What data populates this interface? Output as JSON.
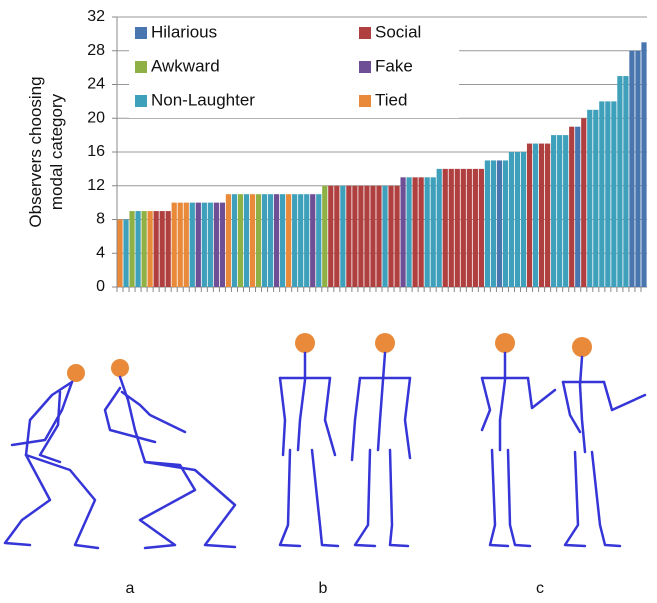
{
  "chart_data": {
    "type": "bar",
    "ylabel": [
      "Observers choosing",
      "modal category"
    ],
    "categories": [
      null,
      null,
      null,
      null,
      null,
      null,
      null,
      null,
      null,
      null,
      null,
      null,
      null,
      null,
      null,
      null,
      null,
      null,
      null,
      null,
      null,
      null,
      null,
      null,
      null,
      null,
      null,
      null,
      null,
      null,
      null,
      null,
      null,
      null,
      null,
      null,
      null,
      null,
      null,
      null,
      null,
      null,
      null,
      null,
      null,
      null,
      null,
      null,
      null,
      null,
      null,
      null,
      null,
      null,
      null,
      null,
      null,
      null,
      null,
      null,
      null,
      null,
      null,
      null,
      null,
      null,
      null,
      null,
      null,
      null,
      null,
      null,
      null,
      null,
      null,
      null,
      null,
      null,
      null,
      null,
      null,
      null,
      null,
      null,
      null,
      null,
      null,
      null
    ],
    "series": [
      {
        "name": "Hilarious",
        "color": "#4a76b0",
        "values": [
          null,
          null,
          null,
          null,
          null,
          null,
          null,
          null,
          null,
          null,
          null,
          null,
          null,
          null,
          null,
          null,
          null,
          null,
          null,
          null,
          null,
          null,
          null,
          null,
          null,
          null,
          null,
          null,
          null,
          null,
          null,
          null,
          null,
          null,
          null,
          null,
          null,
          null,
          null,
          null,
          null,
          null,
          null,
          null,
          null,
          null,
          null,
          null,
          null,
          null,
          null,
          null,
          null,
          null,
          null,
          null,
          null,
          null,
          null,
          null,
          null,
          null,
          null,
          15,
          null,
          null,
          null,
          null,
          null,
          null,
          null,
          null,
          null,
          null,
          null,
          null,
          19,
          null,
          null,
          null,
          null,
          null,
          null,
          null,
          null,
          28,
          28,
          29
        ]
      },
      {
        "name": "Social",
        "color": "#b04040",
        "values": [
          null,
          null,
          null,
          null,
          null,
          null,
          9,
          9,
          9,
          null,
          null,
          null,
          null,
          null,
          null,
          null,
          null,
          null,
          null,
          null,
          null,
          null,
          null,
          null,
          null,
          null,
          null,
          null,
          null,
          null,
          null,
          null,
          null,
          null,
          null,
          12,
          12,
          null,
          12,
          12,
          12,
          12,
          12,
          12,
          null,
          12,
          12,
          null,
          null,
          13,
          13,
          null,
          null,
          null,
          14,
          14,
          14,
          14,
          14,
          14,
          14,
          null,
          null,
          null,
          null,
          null,
          null,
          null,
          17,
          null,
          17,
          17,
          null,
          null,
          null,
          19,
          null,
          20,
          null,
          null,
          null,
          null,
          null,
          null,
          null,
          null,
          null,
          null
        ]
      },
      {
        "name": "Awkward",
        "color": "#8fb045",
        "values": [
          null,
          null,
          9,
          null,
          9,
          null,
          null,
          null,
          null,
          null,
          null,
          null,
          null,
          null,
          null,
          null,
          null,
          null,
          null,
          null,
          11,
          null,
          null,
          11,
          null,
          null,
          null,
          null,
          null,
          null,
          null,
          null,
          null,
          null,
          12,
          null,
          null,
          null,
          null,
          null,
          null,
          null,
          null,
          null,
          null,
          null,
          null,
          null,
          null,
          null,
          null,
          null,
          null,
          null,
          null,
          null,
          null,
          null,
          null,
          null,
          null,
          null,
          null,
          null,
          null,
          null,
          null,
          null,
          null,
          null,
          null,
          null,
          null,
          null,
          null,
          null,
          null,
          null,
          null,
          null,
          null,
          null,
          null,
          null,
          null,
          null,
          null,
          null
        ]
      },
      {
        "name": "Fake",
        "color": "#6e4f96",
        "values": [
          null,
          null,
          null,
          null,
          null,
          null,
          null,
          null,
          null,
          null,
          null,
          null,
          null,
          10,
          null,
          null,
          10,
          10,
          null,
          null,
          null,
          null,
          null,
          null,
          null,
          null,
          11,
          null,
          null,
          null,
          null,
          null,
          11,
          null,
          null,
          null,
          null,
          null,
          null,
          null,
          null,
          null,
          null,
          null,
          null,
          null,
          null,
          13,
          null,
          null,
          null,
          null,
          null,
          null,
          null,
          null,
          null,
          null,
          null,
          null,
          null,
          null,
          null,
          null,
          null,
          null,
          null,
          null,
          null,
          null,
          null,
          null,
          null,
          null,
          null,
          null,
          null,
          null,
          null,
          null,
          null,
          null,
          null,
          null,
          null,
          null,
          null,
          null
        ]
      },
      {
        "name": "Non-Laughter",
        "color": "#3ea0bb",
        "values": [
          null,
          8,
          null,
          9,
          null,
          null,
          null,
          null,
          null,
          null,
          null,
          null,
          10,
          null,
          10,
          10,
          null,
          null,
          null,
          11,
          null,
          11,
          null,
          null,
          11,
          11,
          null,
          11,
          null,
          11,
          11,
          11,
          null,
          11,
          null,
          null,
          null,
          12,
          null,
          null,
          null,
          null,
          null,
          null,
          12,
          null,
          null,
          null,
          13,
          null,
          null,
          13,
          13,
          14,
          null,
          null,
          null,
          null,
          null,
          null,
          null,
          15,
          15,
          null,
          15,
          16,
          16,
          16,
          null,
          17,
          null,
          null,
          18,
          18,
          18,
          null,
          null,
          null,
          21,
          21,
          22,
          22,
          22,
          25,
          25,
          null,
          null,
          null
        ]
      },
      {
        "name": "Tied",
        "color": "#e98a3a",
        "values": [
          8,
          null,
          null,
          null,
          null,
          9,
          null,
          null,
          null,
          10,
          10,
          10,
          null,
          null,
          null,
          null,
          null,
          null,
          11,
          null,
          null,
          null,
          11,
          null,
          null,
          null,
          null,
          null,
          11,
          null,
          null,
          null,
          null,
          null,
          null,
          null,
          null,
          null,
          null,
          null,
          null,
          null,
          null,
          null,
          null,
          null,
          null,
          null,
          null,
          null,
          null,
          null,
          null,
          null,
          null,
          null,
          null,
          null,
          null,
          null,
          null,
          null,
          null,
          null,
          null,
          null,
          null,
          null,
          null,
          null,
          null,
          null,
          null,
          null,
          null,
          null,
          null,
          null,
          null,
          null,
          null,
          null,
          null,
          null,
          null,
          null,
          null,
          null
        ]
      }
    ],
    "ylim": [
      0,
      32
    ],
    "yticks": [
      0,
      4,
      8,
      12,
      16,
      20,
      24,
      28,
      32
    ],
    "grid": true,
    "legend": "upper left"
  },
  "figure": {
    "panels": [
      "a",
      "b",
      "c"
    ]
  }
}
